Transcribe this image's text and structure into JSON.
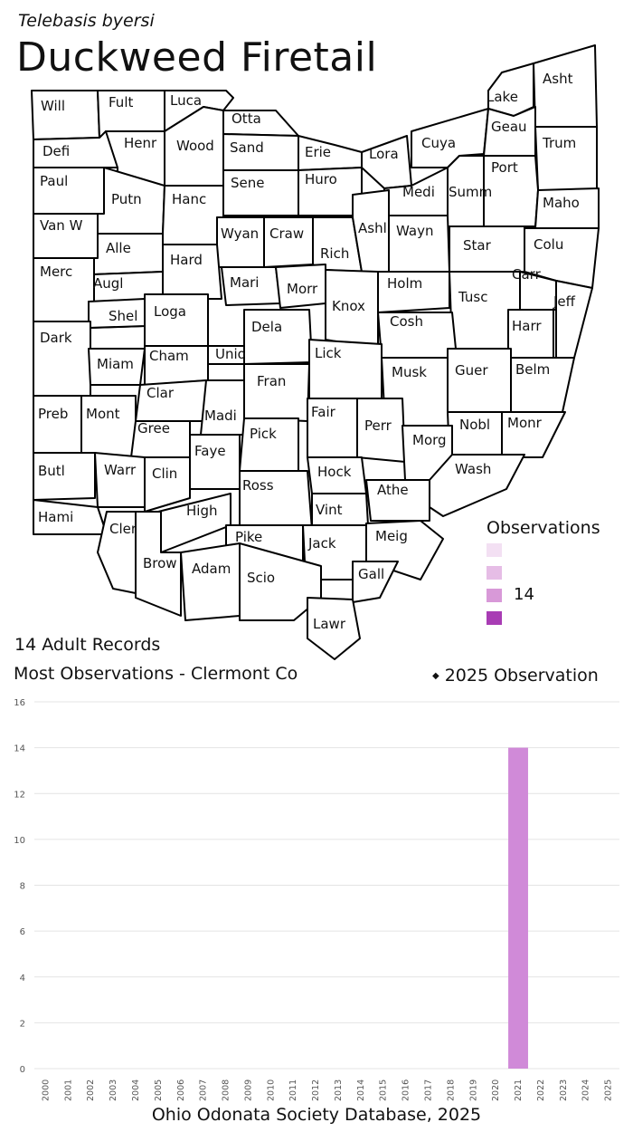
{
  "header": {
    "scientific_name": "Telebasis byersi",
    "common_name": "Duckweed Firetail"
  },
  "map": {
    "counties": [
      "Will",
      "Fult",
      "Luca",
      "Otta",
      "Lake",
      "Asht",
      "Defi",
      "Henr",
      "Wood",
      "Sand",
      "Erie",
      "Lora",
      "Cuya",
      "Geau",
      "Trum",
      "Paul",
      "Putn",
      "Hanc",
      "Sene",
      "Huro",
      "Medi",
      "Summ",
      "Port",
      "Maho",
      "Van W",
      "Alle",
      "Wyan",
      "Craw",
      "Rich",
      "Ashl",
      "Wayn",
      "Star",
      "Colu",
      "Hard",
      "Merc",
      "Augl",
      "Mari",
      "Morr",
      "Holm",
      "Tusc",
      "Carr",
      "Jeff",
      "Shel",
      "Loga",
      "Knox",
      "Dela",
      "Cosh",
      "Harr",
      "Dark",
      "Miam",
      "Cham",
      "Unio",
      "Lick",
      "Musk",
      "Guer",
      "Belm",
      "Clar",
      "Fran",
      "Fair",
      "Perr",
      "Nobl",
      "Monr",
      "Preb",
      "Mont",
      "Gree",
      "Madi",
      "Pick",
      "Morg",
      "Faye",
      "Butl",
      "Warr",
      "Clin",
      "Hock",
      "Wash",
      "Ross",
      "Athe",
      "Hami",
      "Cler",
      "High",
      "Vint",
      "Pike",
      "Jack",
      "Meig",
      "Brow",
      "Adam",
      "Scio",
      "Gall",
      "Lawr"
    ],
    "highlighted": [
      {
        "county": "Cler",
        "observations": 14,
        "color": "#d899d8"
      }
    ]
  },
  "legend": {
    "title": "Observations",
    "items": [
      {
        "color": "#f3e0f3",
        "label": ""
      },
      {
        "color": "#e6bde6",
        "label": ""
      },
      {
        "color": "#d899d8",
        "label": "14"
      },
      {
        "color": "#a83cb4",
        "label": ""
      }
    ]
  },
  "stats": {
    "records": "14 Adult Records",
    "most": "Most Observations - Clermont Co",
    "obs_marker": "2025  Observation"
  },
  "chart_data": {
    "type": "bar",
    "categories": [
      "2000",
      "2001",
      "2002",
      "2003",
      "2004",
      "2005",
      "2006",
      "2007",
      "2008",
      "2009",
      "2010",
      "2011",
      "2012",
      "2013",
      "2014",
      "2015",
      "2016",
      "2017",
      "2018",
      "2019",
      "2020",
      "2021",
      "2022",
      "2023",
      "2024",
      "2025"
    ],
    "values": [
      0,
      0,
      0,
      0,
      0,
      0,
      0,
      0,
      0,
      0,
      0,
      0,
      0,
      0,
      0,
      0,
      0,
      0,
      0,
      0,
      0,
      14,
      0,
      0,
      0,
      0
    ],
    "ylim": [
      0,
      16
    ],
    "yticks": [
      "0",
      "2",
      "4",
      "6",
      "8",
      "10",
      "12",
      "14",
      "16"
    ],
    "bar_color": "#d08ad8",
    "grid": true
  },
  "footer": {
    "source": "Ohio Odonata Society Database, 2025"
  }
}
